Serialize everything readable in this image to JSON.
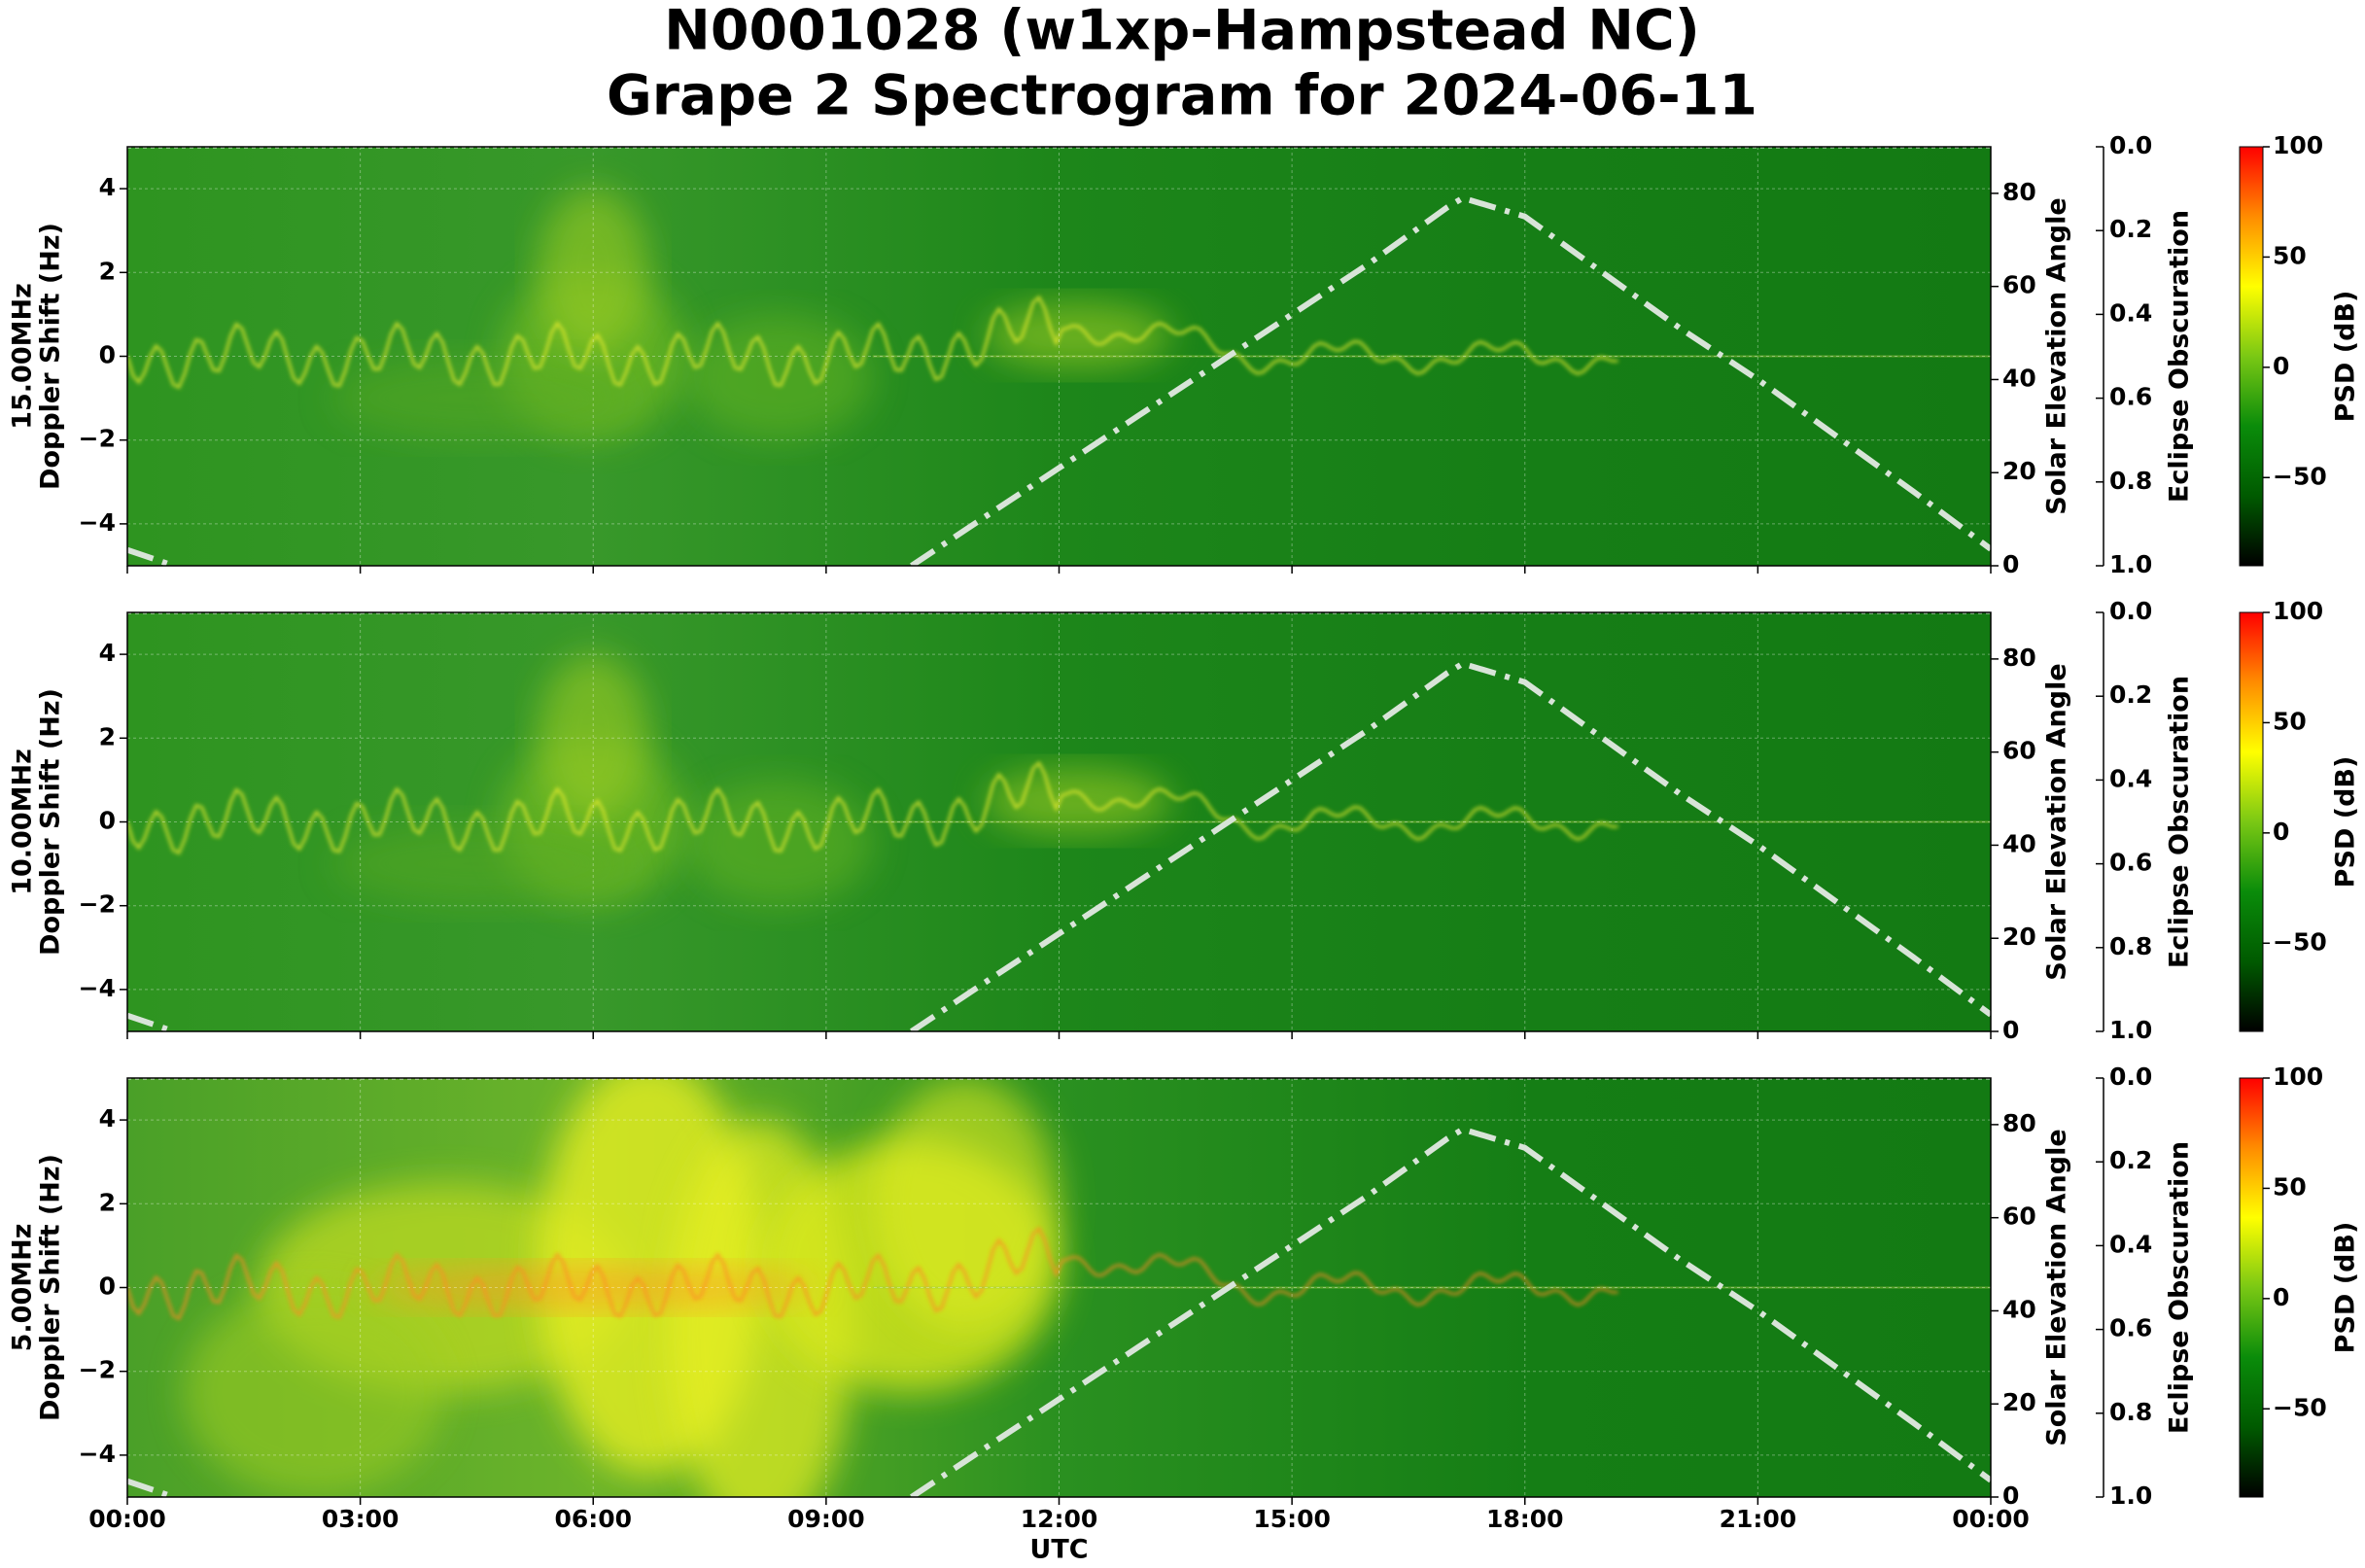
{
  "title": [
    "N0001028 (w1xp-Hampstead NC)",
    "Grape 2 Spectrogram for 2024-06-11"
  ],
  "chart_data": [
    {
      "type": "spectrogram",
      "ylabel": [
        "15.00MHz",
        "Doppler Shift (Hz)"
      ],
      "ylim": [
        -5,
        5
      ],
      "yticks": [
        {
          "value": -4,
          "label": "−4"
        },
        {
          "value": -2,
          "label": "−2"
        },
        0,
        2,
        4
      ],
      "xlim": [
        0,
        24
      ],
      "xticks": [
        0,
        3,
        6,
        9,
        12,
        15,
        18,
        21,
        24
      ],
      "grid": true,
      "y2label": "Solar Elevation Angle",
      "y2lim": [
        0,
        90
      ],
      "y2ticks": [
        0,
        20,
        40,
        60,
        80
      ],
      "solar_elevation": {
        "axis": "y2",
        "color": "#d8e4d8",
        "x": [
          0,
          0.6,
          5,
          10.1,
          11,
          12,
          13,
          14,
          15,
          16,
          17,
          17.2,
          18,
          19,
          20,
          21,
          22,
          23,
          24
        ],
        "values": [
          3.4,
          0,
          null,
          0,
          10,
          21,
          32,
          43,
          54,
          65,
          77,
          79,
          75,
          63,
          51,
          40,
          28,
          16,
          3.6
        ]
      },
      "eclipse_label": "Eclipse Obscuration",
      "eclipse_lim": [
        0,
        1
      ],
      "eclipse_ticks": [
        {
          "value": 0,
          "label": "0.0"
        },
        0.2,
        0.4,
        0.6,
        0.8,
        {
          "value": 1,
          "label": "1.0"
        }
      ],
      "eclipse": {
        "axis": "eclipse",
        "color": "#ffffff",
        "x": [
          0,
          24
        ],
        "values": [
          0,
          0
        ]
      },
      "colorbar_label": "PSD (dB)",
      "clim": [
        -90,
        100
      ],
      "cticks": [
        {
          "value": -50,
          "label": "−50"
        },
        0,
        50,
        100
      ],
      "colormap": [
        "#000000",
        "#005a00",
        "#0a8c0a",
        "#7ac814",
        "#ffff00",
        "#ff8c00",
        "#ff0000"
      ]
    },
    {
      "type": "spectrogram",
      "ylabel": [
        "10.00MHz",
        "Doppler Shift (Hz)"
      ],
      "ylim": [
        -5,
        5
      ],
      "yticks": [
        {
          "value": -4,
          "label": "−4"
        },
        {
          "value": -2,
          "label": "−2"
        },
        0,
        2,
        4
      ],
      "xlim": [
        0,
        24
      ],
      "xticks": [
        0,
        3,
        6,
        9,
        12,
        15,
        18,
        21,
        24
      ],
      "grid": true,
      "y2label": "Solar Elevation Angle",
      "y2lim": [
        0,
        90
      ],
      "y2ticks": [
        0,
        20,
        40,
        60,
        80
      ],
      "solar_elevation": {
        "axis": "y2",
        "color": "#d8e4d8",
        "x": [
          0,
          0.6,
          5,
          10.1,
          11,
          12,
          13,
          14,
          15,
          16,
          17,
          17.2,
          18,
          19,
          20,
          21,
          22,
          23,
          24
        ],
        "values": [
          3.4,
          0,
          null,
          0,
          10,
          21,
          32,
          43,
          54,
          65,
          77,
          79,
          75,
          63,
          51,
          40,
          28,
          16,
          3.6
        ]
      },
      "eclipse_label": "Eclipse Obscuration",
      "eclipse_lim": [
        0,
        1
      ],
      "eclipse_ticks": [
        {
          "value": 0,
          "label": "0.0"
        },
        0.2,
        0.4,
        0.6,
        0.8,
        {
          "value": 1,
          "label": "1.0"
        }
      ],
      "eclipse": {
        "axis": "eclipse",
        "color": "#ffffff",
        "x": [
          0,
          24
        ],
        "values": [
          0,
          0
        ]
      },
      "colorbar_label": "PSD (dB)",
      "clim": [
        -90,
        100
      ],
      "cticks": [
        {
          "value": -50,
          "label": "−50"
        },
        0,
        50,
        100
      ],
      "colormap": [
        "#000000",
        "#005a00",
        "#0a8c0a",
        "#7ac814",
        "#ffff00",
        "#ff8c00",
        "#ff0000"
      ]
    },
    {
      "type": "spectrogram",
      "ylabel": [
        "5.00MHz",
        "Doppler Shift (Hz)"
      ],
      "ylim": [
        -5,
        5
      ],
      "yticks": [
        {
          "value": -4,
          "label": "−4"
        },
        {
          "value": -2,
          "label": "−2"
        },
        0,
        2,
        4
      ],
      "xlim": [
        0,
        24
      ],
      "xticks": [
        {
          "value": 0,
          "label": "00:00"
        },
        {
          "value": 3,
          "label": "03:00"
        },
        {
          "value": 6,
          "label": "06:00"
        },
        {
          "value": 9,
          "label": "09:00"
        },
        {
          "value": 12,
          "label": "12:00"
        },
        {
          "value": 15,
          "label": "15:00"
        },
        {
          "value": 18,
          "label": "18:00"
        },
        {
          "value": 21,
          "label": "21:00"
        },
        {
          "value": 24,
          "label": "00:00"
        }
      ],
      "xlabel": "UTC",
      "grid": true,
      "y2label": "Solar Elevation Angle",
      "y2lim": [
        0,
        90
      ],
      "y2ticks": [
        0,
        20,
        40,
        60,
        80
      ],
      "solar_elevation": {
        "axis": "y2",
        "color": "#d8e4d8",
        "x": [
          0,
          0.6,
          5,
          10.1,
          11,
          12,
          13,
          14,
          15,
          16,
          17,
          17.2,
          18,
          19,
          20,
          21,
          22,
          23,
          24
        ],
        "values": [
          3.4,
          0,
          null,
          0,
          10,
          21,
          32,
          43,
          54,
          65,
          77,
          79,
          75,
          63,
          51,
          40,
          28,
          16,
          3.6
        ]
      },
      "eclipse_label": "Eclipse Obscuration",
      "eclipse_lim": [
        0,
        1
      ],
      "eclipse_ticks": [
        {
          "value": 0,
          "label": "0.0"
        },
        0.2,
        0.4,
        0.6,
        0.8,
        {
          "value": 1,
          "label": "1.0"
        }
      ],
      "eclipse": {
        "axis": "eclipse",
        "color": "#ffffff",
        "x": [
          0,
          24
        ],
        "values": [
          0,
          0
        ]
      },
      "colorbar_label": "PSD (dB)",
      "clim": [
        -90,
        100
      ],
      "cticks": [
        {
          "value": -50,
          "label": "−50"
        },
        0,
        50,
        100
      ],
      "colormap": [
        "#000000",
        "#005a00",
        "#0a8c0a",
        "#7ac814",
        "#ffff00",
        "#ff8c00",
        "#ff0000"
      ]
    }
  ]
}
